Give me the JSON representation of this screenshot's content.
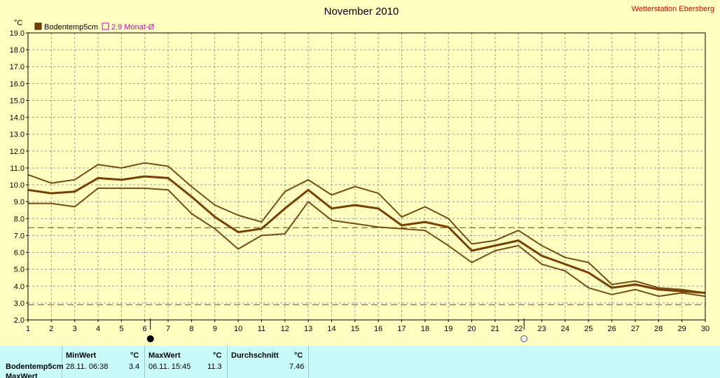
{
  "chart_data": {
    "type": "line",
    "title": "November 2010",
    "station": "Wetterstation Ebersberg",
    "ylabel": "°C",
    "ylim": [
      2.0,
      19.0
    ],
    "yticks": [
      "2.0",
      "3.0",
      "4.0",
      "5.0",
      "6.0",
      "7.0",
      "8.0",
      "9.0",
      "10.0",
      "11.0",
      "12.0",
      "13.0",
      "14.0",
      "15.0",
      "16.0",
      "17.0",
      "18.0",
      "19.0"
    ],
    "xlim": [
      1,
      30
    ],
    "x": [
      1,
      2,
      3,
      4,
      5,
      6,
      7,
      8,
      9,
      10,
      11,
      12,
      13,
      14,
      15,
      16,
      17,
      18,
      19,
      20,
      21,
      22,
      23,
      24,
      25,
      26,
      27,
      28,
      29,
      30
    ],
    "grid": true,
    "legend": [
      {
        "label": "Bodentemp5cm",
        "color": "#7a3f00",
        "marker": "filled-square"
      },
      {
        "label": "2.9 Monat-Ø",
        "color": "#cc00cc",
        "marker": "open-square"
      }
    ],
    "series": [
      {
        "name": "Bodentemp5cm",
        "role": "max",
        "color": "#7a4a10",
        "values": [
          10.6,
          10.1,
          10.3,
          11.2,
          11.0,
          11.3,
          11.1,
          9.9,
          8.8,
          8.2,
          7.8,
          9.6,
          10.3,
          9.4,
          9.9,
          9.5,
          8.1,
          8.7,
          8.0,
          6.5,
          6.7,
          7.3,
          6.4,
          5.7,
          5.4,
          4.1,
          4.3,
          3.9,
          3.8,
          3.6
        ]
      },
      {
        "name": "Bodentemp5cm",
        "role": "mean",
        "color": "#7a3f00",
        "values": [
          9.7,
          9.5,
          9.6,
          10.4,
          10.3,
          10.5,
          10.4,
          9.3,
          8.1,
          7.2,
          7.4,
          8.6,
          9.7,
          8.6,
          8.8,
          8.6,
          7.6,
          7.8,
          7.5,
          6.1,
          6.4,
          6.7,
          5.8,
          5.3,
          4.8,
          3.9,
          4.1,
          3.8,
          3.7,
          3.6
        ]
      },
      {
        "name": "Bodentemp5cm",
        "role": "min",
        "color": "#7a4a10",
        "values": [
          8.9,
          8.9,
          8.7,
          9.8,
          9.8,
          9.8,
          9.7,
          8.3,
          7.4,
          6.2,
          7.0,
          7.1,
          9.0,
          7.9,
          7.7,
          7.5,
          7.4,
          7.3,
          6.4,
          5.4,
          6.1,
          6.4,
          5.3,
          4.9,
          3.9,
          3.5,
          3.8,
          3.4,
          3.6,
          3.4
        ]
      }
    ],
    "reference_lines": [
      {
        "value": 7.46,
        "color": "#7a5a20"
      },
      {
        "value": 2.9,
        "color": "#cc3080"
      }
    ],
    "moon_markers": [
      {
        "day": 6,
        "phase": "new"
      },
      {
        "day": 22,
        "phase": "full"
      }
    ]
  },
  "stats": {
    "header": {
      "min": "MinWert",
      "min_unit": "°C",
      "max": "MaxWert",
      "max_unit": "°C",
      "avg": "Durchschnitt",
      "avg_unit": "°C"
    },
    "rows": [
      {
        "label": "Bodentemp5cm",
        "min_time": "28.11.  06:38",
        "min_value": "3.4",
        "max_time": "06.11.  15:45",
        "max_value": "11.3",
        "avg_value": "7.46"
      }
    ],
    "partial_row_label": "MaxWert"
  }
}
